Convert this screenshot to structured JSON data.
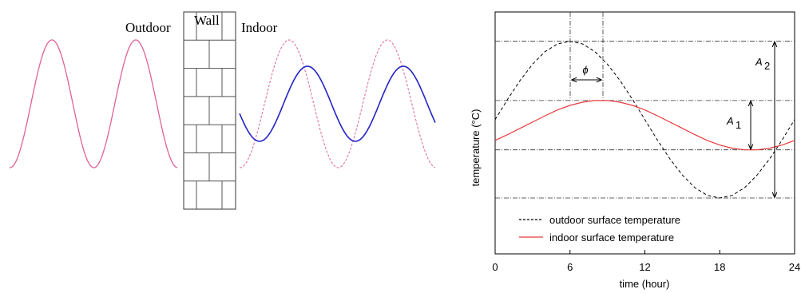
{
  "diagram": {
    "outdoor_label": "Outdoor",
    "wall_label": "Wall",
    "indoor_label": "Indoor"
  },
  "chart_data": {
    "type": "line",
    "xlabel": "time (hour)",
    "ylabel": "temperature (°C)",
    "x": [
      0,
      1,
      2,
      3,
      4,
      5,
      6,
      7,
      8,
      9,
      10,
      11,
      12,
      13,
      14,
      15,
      16,
      17,
      18,
      19,
      20,
      21,
      22,
      23,
      24
    ],
    "xlim": [
      0,
      24
    ],
    "xticks": [
      0,
      6,
      12,
      18,
      24
    ],
    "ylim": [
      0,
      10
    ],
    "series": [
      {
        "name": "outdoor surface temperature",
        "color": "#000000",
        "dash": true,
        "values": [
          5.55,
          6.39,
          7.17,
          7.84,
          8.36,
          8.68,
          8.79,
          8.68,
          8.36,
          7.84,
          7.17,
          6.39,
          5.55,
          4.71,
          3.93,
          3.26,
          2.74,
          2.42,
          2.31,
          2.42,
          2.74,
          3.26,
          3.93,
          4.71,
          5.55
        ]
      },
      {
        "name": "indoor surface temperature",
        "color": "#e8393b",
        "dash": false,
        "values": [
          4.69,
          4.93,
          5.19,
          5.45,
          5.71,
          5.95,
          6.14,
          6.27,
          6.34,
          6.34,
          6.27,
          6.14,
          5.95,
          5.71,
          5.45,
          5.19,
          4.93,
          4.69,
          4.5,
          4.37,
          4.3,
          4.3,
          4.37,
          4.5,
          4.69
        ]
      }
    ],
    "annotations": {
      "phase": "ϕ",
      "indoor_amplitude": {
        "symbol": "A",
        "subscript": "1"
      },
      "outdoor_amplitude": {
        "symbol": "A",
        "subscript": "2"
      }
    }
  }
}
